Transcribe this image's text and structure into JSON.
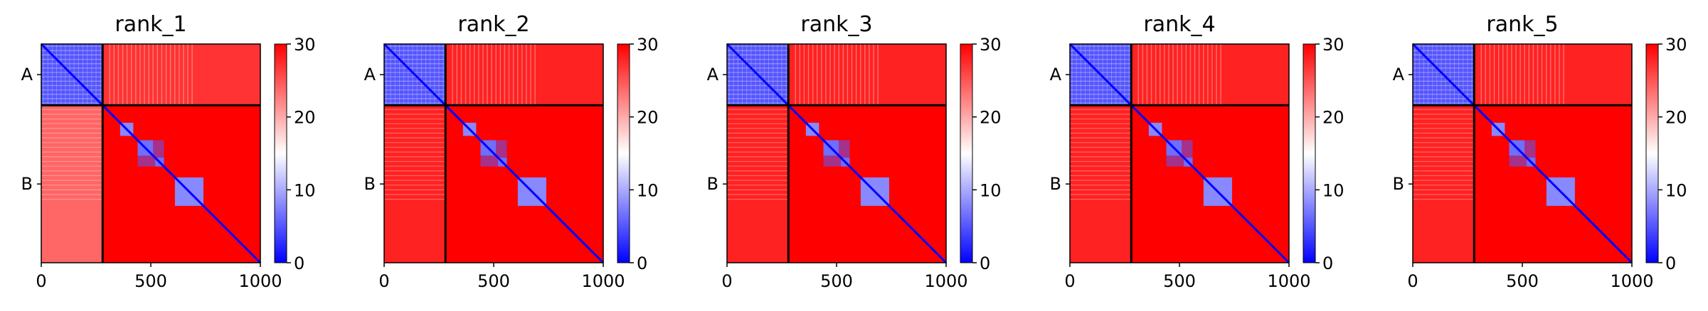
{
  "figure": {
    "domain": "Chart",
    "panel_count": 5
  },
  "colors": {
    "low": "#0000ff",
    "mid": "#ffffff",
    "high": "#ff0000",
    "frame": "#000000"
  },
  "chart_data": [
    {
      "type": "heatmap",
      "title": "rank_1",
      "xlabel": "",
      "ylabel": "",
      "xlim": [
        0,
        1000
      ],
      "x_ticks": [
        "0",
        "500",
        "1000"
      ],
      "y_tick_labels": [
        "A",
        "B"
      ],
      "chain_boundary": 280,
      "colorbar": {
        "min": 0,
        "max": 30,
        "ticks": [
          "0",
          "10",
          "20",
          "30"
        ],
        "colormap": "bwr"
      },
      "blocks": [
        {
          "region": "A-A",
          "approx_value": 5
        },
        {
          "region": "A-B",
          "approx_value": 27
        },
        {
          "region": "B-A",
          "approx_value": 24
        },
        {
          "region": "B-B",
          "approx_value": 30
        },
        {
          "region": "diagonal",
          "approx_value": 0
        }
      ]
    },
    {
      "type": "heatmap",
      "title": "rank_2",
      "xlabel": "",
      "ylabel": "",
      "xlim": [
        0,
        1000
      ],
      "x_ticks": [
        "0",
        "500",
        "1000"
      ],
      "y_tick_labels": [
        "A",
        "B"
      ],
      "chain_boundary": 280,
      "colorbar": {
        "min": 0,
        "max": 30,
        "ticks": [
          "0",
          "10",
          "20",
          "30"
        ],
        "colormap": "bwr"
      },
      "blocks": [
        {
          "region": "A-A",
          "approx_value": 5
        },
        {
          "region": "A-B",
          "approx_value": 28
        },
        {
          "region": "B-A",
          "approx_value": 28
        },
        {
          "region": "B-B",
          "approx_value": 30
        },
        {
          "region": "diagonal",
          "approx_value": 0
        }
      ]
    },
    {
      "type": "heatmap",
      "title": "rank_3",
      "xlabel": "",
      "ylabel": "",
      "xlim": [
        0,
        1000
      ],
      "x_ticks": [
        "0",
        "500",
        "1000"
      ],
      "y_tick_labels": [
        "A",
        "B"
      ],
      "chain_boundary": 280,
      "colorbar": {
        "min": 0,
        "max": 30,
        "ticks": [
          "0",
          "10",
          "20",
          "30"
        ],
        "colormap": "bwr"
      },
      "blocks": [
        {
          "region": "A-A",
          "approx_value": 5
        },
        {
          "region": "A-B",
          "approx_value": 28
        },
        {
          "region": "B-A",
          "approx_value": 28
        },
        {
          "region": "B-B",
          "approx_value": 30
        },
        {
          "region": "diagonal",
          "approx_value": 0
        }
      ]
    },
    {
      "type": "heatmap",
      "title": "rank_4",
      "xlabel": "",
      "ylabel": "",
      "xlim": [
        0,
        1000
      ],
      "x_ticks": [
        "0",
        "500",
        "1000"
      ],
      "y_tick_labels": [
        "A",
        "B"
      ],
      "chain_boundary": 280,
      "colorbar": {
        "min": 0,
        "max": 30,
        "ticks": [
          "0",
          "10",
          "20",
          "30"
        ],
        "colormap": "bwr"
      },
      "blocks": [
        {
          "region": "A-A",
          "approx_value": 5
        },
        {
          "region": "A-B",
          "approx_value": 28
        },
        {
          "region": "B-A",
          "approx_value": 28
        },
        {
          "region": "B-B",
          "approx_value": 30
        },
        {
          "region": "diagonal",
          "approx_value": 0
        }
      ]
    },
    {
      "type": "heatmap",
      "title": "rank_5",
      "xlabel": "",
      "ylabel": "",
      "xlim": [
        0,
        1000
      ],
      "x_ticks": [
        "0",
        "500",
        "1000"
      ],
      "y_tick_labels": [
        "A",
        "B"
      ],
      "chain_boundary": 280,
      "colorbar": {
        "min": 0,
        "max": 30,
        "ticks": [
          "0",
          "10",
          "20",
          "30"
        ],
        "colormap": "bwr"
      },
      "blocks": [
        {
          "region": "A-A",
          "approx_value": 5
        },
        {
          "region": "A-B",
          "approx_value": 28
        },
        {
          "region": "B-A",
          "approx_value": 28
        },
        {
          "region": "B-B",
          "approx_value": 30
        },
        {
          "region": "diagonal",
          "approx_value": 0
        }
      ]
    }
  ]
}
